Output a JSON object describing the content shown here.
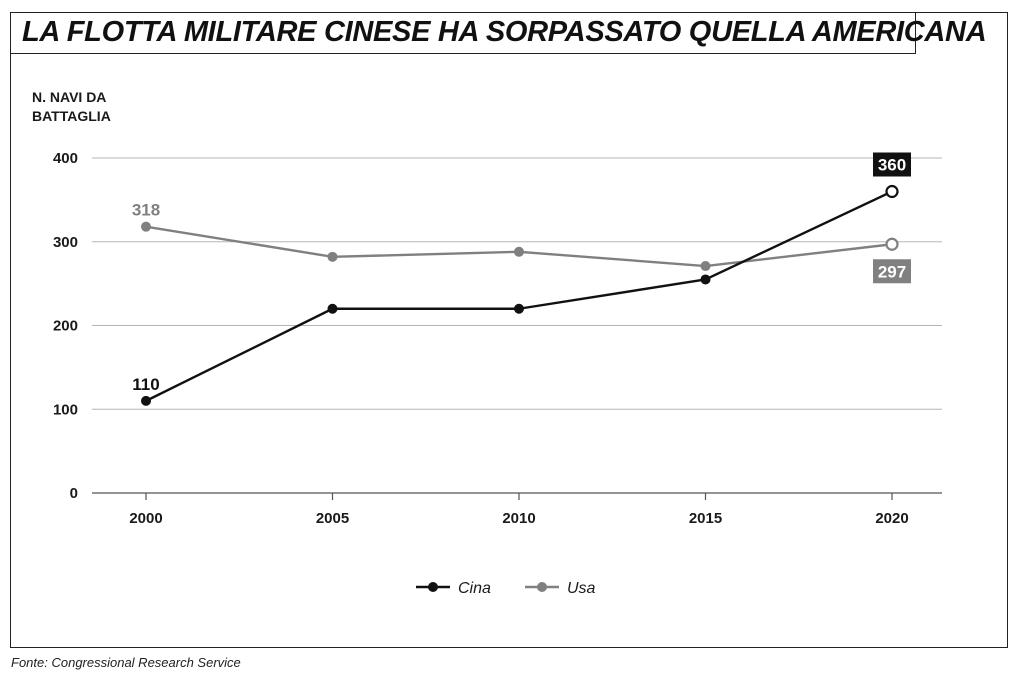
{
  "title": "LA FLOTTA MILITARE CINESE HA SORPASSATO QUELLA AMERICANA",
  "source": "Fonte: Congressional Research Service",
  "chart_data": {
    "type": "line",
    "title": "LA FLOTTA MILITARE CINESE HA SORPASSATO QUELLA AMERICANA",
    "ylabel_lines": [
      "N. NAVI DA",
      "BATTAGLIA"
    ],
    "xlabel": "",
    "x": [
      "2000",
      "2005",
      "2010",
      "2015",
      "2020"
    ],
    "yticks": [
      0,
      100,
      200,
      300,
      400
    ],
    "ylim": [
      0,
      400
    ],
    "grid": true,
    "legend_position": "bottom-center",
    "series": [
      {
        "name": "Cina",
        "color": "#111111",
        "values": [
          110,
          220,
          220,
          255,
          360
        ]
      },
      {
        "name": "Usa",
        "color": "#808080",
        "values": [
          318,
          282,
          288,
          271,
          297
        ]
      }
    ],
    "annotations": [
      {
        "series": "Cina",
        "x": "2000",
        "text": "110",
        "style": "plain"
      },
      {
        "series": "Usa",
        "x": "2000",
        "text": "318",
        "style": "plain"
      },
      {
        "series": "Cina",
        "x": "2020",
        "text": "360",
        "style": "box"
      },
      {
        "series": "Usa",
        "x": "2020",
        "text": "297",
        "style": "box"
      }
    ]
  }
}
